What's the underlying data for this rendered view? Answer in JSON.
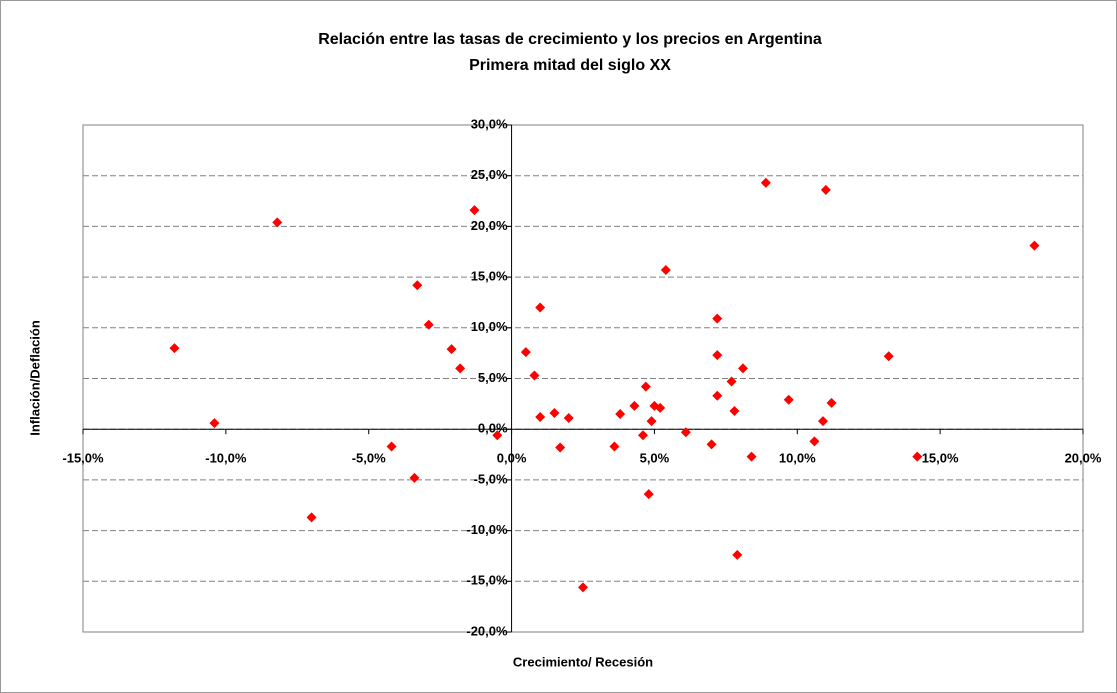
{
  "chart_data": {
    "type": "scatter",
    "title": "Relación entre las tasas de crecimiento y los precios en Argentina",
    "subtitle": "Primera mitad del siglo XX",
    "x_label": "Crecimiento/ Recesión",
    "y_label": "Inflación/Deflación",
    "color": "#ff0000",
    "grid": true,
    "x": [
      -11.8,
      -10.4,
      -8.2,
      -7.0,
      -4.2,
      -3.4,
      -3.3,
      -2.9,
      -2.1,
      -1.8,
      -1.3,
      -0.5,
      0.5,
      0.8,
      1.0,
      1.0,
      1.5,
      1.7,
      2.0,
      2.5,
      3.6,
      3.8,
      4.3,
      4.6,
      4.7,
      4.8,
      4.9,
      5.0,
      5.2,
      5.4,
      6.1,
      7.0,
      7.2,
      7.2,
      7.2,
      7.7,
      7.8,
      7.9,
      8.1,
      8.4,
      8.9,
      9.7,
      10.6,
      10.9,
      11.0,
      11.2,
      13.2,
      14.2,
      18.3
    ],
    "values": [
      8.0,
      0.6,
      20.4,
      -8.7,
      -1.7,
      -4.8,
      14.2,
      10.3,
      7.9,
      6.0,
      21.6,
      -0.6,
      7.6,
      5.3,
      1.2,
      12.0,
      1.6,
      -1.8,
      1.1,
      -15.6,
      -1.7,
      1.5,
      2.3,
      -0.6,
      4.2,
      -6.4,
      0.8,
      2.3,
      2.1,
      15.7,
      -0.3,
      -1.5,
      10.9,
      7.3,
      3.3,
      4.7,
      1.8,
      -12.4,
      6.0,
      -2.7,
      24.3,
      2.9,
      -1.2,
      0.8,
      23.6,
      2.6,
      7.2,
      -2.7,
      18.1
    ],
    "xlim": [
      -15,
      20
    ],
    "xticks": [
      {
        "value": -15,
        "label": "-15,0%"
      },
      {
        "value": -10,
        "label": "-10,0%"
      },
      {
        "value": -5,
        "label": "-5,0%"
      },
      {
        "value": 0,
        "label": "0,0%"
      },
      {
        "value": 5,
        "label": "5,0%"
      },
      {
        "value": 10,
        "label": "10,0%"
      },
      {
        "value": 15,
        "label": "15,0%"
      },
      {
        "value": 20,
        "label": "20,0%"
      }
    ],
    "ylim": [
      -20,
      30
    ],
    "yticks": [
      {
        "value": -20,
        "label": "-20,0%"
      },
      {
        "value": -15,
        "label": "-15,0%"
      },
      {
        "value": -10,
        "label": "-10,0%"
      },
      {
        "value": -5,
        "label": "-5,0%"
      },
      {
        "value": 0,
        "label": "0,0%"
      },
      {
        "value": 5,
        "label": "5,0%"
      },
      {
        "value": 10,
        "label": "10,0%"
      },
      {
        "value": 15,
        "label": "15,0%"
      },
      {
        "value": 20,
        "label": "20,0%"
      },
      {
        "value": 25,
        "label": "25,0%"
      },
      {
        "value": 30,
        "label": "30,0%"
      }
    ]
  }
}
